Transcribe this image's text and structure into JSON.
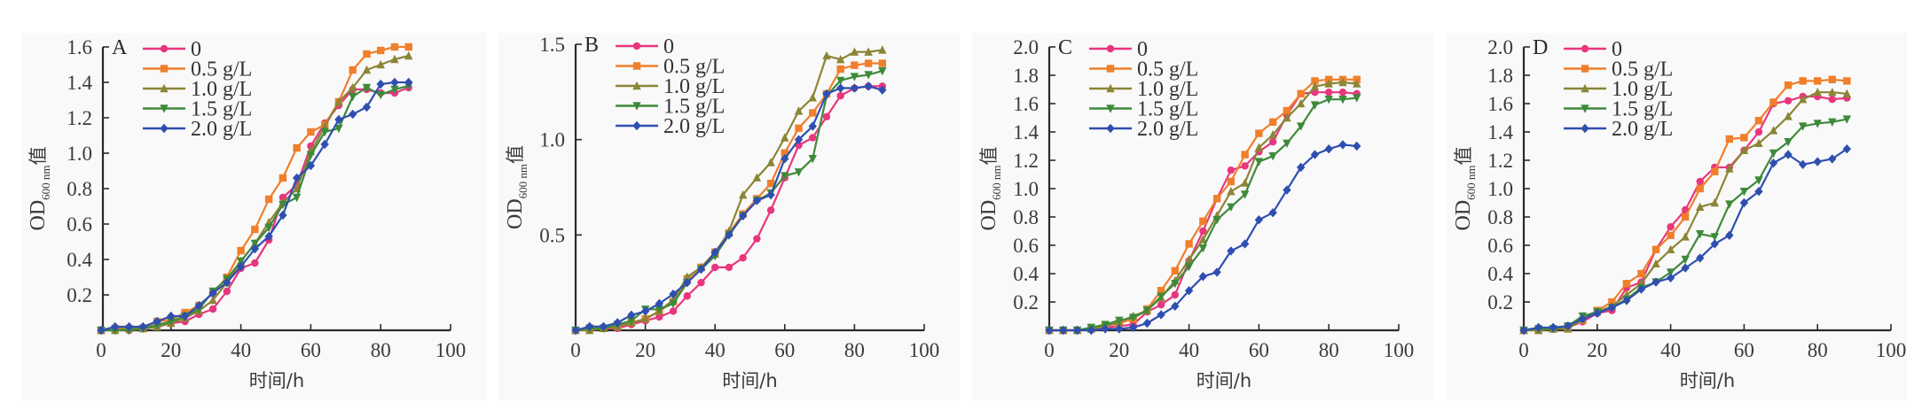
{
  "figure": {
    "series_labels": [
      "0",
      "0.5 g/L",
      "1.0 g/L",
      "1.5 g/L",
      "2.0 g/L"
    ],
    "series_colors": [
      "#e8367f",
      "#f07f2b",
      "#8b8536",
      "#3d8a3a",
      "#2f4fb0"
    ],
    "series_markers": [
      "circle",
      "square",
      "triangle-up",
      "triangle-down",
      "diamond"
    ]
  },
  "chart_data": [
    {
      "type": "line",
      "panel": "A",
      "title": "",
      "xlabel": "时间/h",
      "ylabel_main": "OD",
      "ylabel_sub": "600 nm",
      "ylabel_suffix": "值",
      "xlim": [
        0,
        100
      ],
      "ylim": [
        0,
        1.6
      ],
      "xticks": [
        0,
        20,
        40,
        60,
        80,
        100
      ],
      "yticks": [
        0.2,
        0.4,
        0.6,
        0.8,
        1.0,
        1.2,
        1.4,
        1.6
      ],
      "ytick_labels": [
        "0.2",
        "0.4",
        "0.6",
        "0.8",
        "1.0",
        "1.2",
        "1.4",
        "1.6"
      ],
      "xtick_labels": [
        "0",
        "20",
        "40",
        "60",
        "80",
        "100"
      ],
      "legend": "top-left",
      "grid": false,
      "x": [
        0,
        4,
        8,
        12,
        16,
        20,
        24,
        28,
        32,
        36,
        40,
        44,
        48,
        52,
        56,
        60,
        64,
        68,
        72,
        76,
        80,
        84,
        88
      ],
      "series": [
        {
          "name": "0",
          "values": [
            0,
            0.01,
            0,
            0.01,
            0.02,
            0.04,
            0.05,
            0.09,
            0.12,
            0.22,
            0.35,
            0.38,
            0.51,
            0.75,
            0.82,
            1.04,
            1.17,
            1.27,
            1.36,
            1.36,
            1.34,
            1.34,
            1.37
          ]
        },
        {
          "name": "0.5 g/L",
          "values": [
            0,
            0.01,
            0.01,
            0.01,
            0.05,
            0.06,
            0.1,
            0.14,
            0.21,
            0.3,
            0.45,
            0.57,
            0.74,
            0.86,
            1.03,
            1.12,
            1.16,
            1.29,
            1.47,
            1.56,
            1.58,
            1.6,
            1.6
          ]
        },
        {
          "name": "1.0 g/L",
          "values": [
            0,
            0,
            0.01,
            0.01,
            0.02,
            0.04,
            0.07,
            0.11,
            0.17,
            0.27,
            0.39,
            0.49,
            0.61,
            0.72,
            0.8,
            1.01,
            1.15,
            1.29,
            1.37,
            1.47,
            1.5,
            1.53,
            1.55
          ]
        },
        {
          "name": "1.5 g/L",
          "values": [
            0,
            0,
            0,
            0.01,
            0.03,
            0.05,
            0.08,
            0.12,
            0.22,
            0.29,
            0.39,
            0.49,
            0.58,
            0.71,
            0.75,
            0.99,
            1.12,
            1.14,
            1.32,
            1.37,
            1.33,
            1.36,
            1.38
          ]
        },
        {
          "name": "2.0 g/L",
          "values": [
            0,
            0.02,
            0.02,
            0.02,
            0.05,
            0.08,
            0.08,
            0.14,
            0.21,
            0.27,
            0.36,
            0.46,
            0.53,
            0.65,
            0.86,
            0.93,
            1.05,
            1.19,
            1.22,
            1.26,
            1.39,
            1.4,
            1.4
          ]
        }
      ]
    },
    {
      "type": "line",
      "panel": "B",
      "title": "",
      "xlabel": "时间/h",
      "ylabel_main": "OD",
      "ylabel_sub": "600 nm",
      "ylabel_suffix": "值",
      "xlim": [
        0,
        100
      ],
      "ylim": [
        0,
        1.5
      ],
      "xticks": [
        0,
        20,
        40,
        60,
        80,
        100
      ],
      "yticks": [
        0.5,
        1.0,
        1.5
      ],
      "ytick_labels": [
        "0.5",
        "1.0",
        "1.5"
      ],
      "xtick_labels": [
        "0",
        "20",
        "40",
        "60",
        "80",
        "100"
      ],
      "legend": "top-left",
      "grid": false,
      "x": [
        0,
        4,
        8,
        12,
        16,
        20,
        24,
        28,
        32,
        36,
        40,
        44,
        48,
        52,
        56,
        60,
        64,
        68,
        72,
        76,
        80,
        84,
        88
      ],
      "series": [
        {
          "name": "0",
          "values": [
            0,
            0.01,
            0.01,
            0.01,
            0.03,
            0.05,
            0.07,
            0.1,
            0.18,
            0.25,
            0.33,
            0.33,
            0.38,
            0.48,
            0.63,
            0.8,
            0.97,
            1.01,
            1.12,
            1.23,
            1.27,
            1.28,
            1.28
          ]
        },
        {
          "name": "0.5 g/L",
          "values": [
            0,
            0.01,
            0.01,
            0.02,
            0.04,
            0.06,
            0.1,
            0.15,
            0.27,
            0.33,
            0.41,
            0.51,
            0.61,
            0.69,
            0.77,
            0.93,
            1.06,
            1.14,
            1.24,
            1.37,
            1.39,
            1.4,
            1.4
          ]
        },
        {
          "name": "1.0 g/L",
          "values": [
            0,
            0,
            0.01,
            0.02,
            0.04,
            0.06,
            0.1,
            0.16,
            0.28,
            0.33,
            0.4,
            0.52,
            0.71,
            0.8,
            0.88,
            1.01,
            1.15,
            1.22,
            1.44,
            1.42,
            1.46,
            1.46,
            1.47
          ]
        },
        {
          "name": "1.5 g/L",
          "values": [
            0,
            0.01,
            0.01,
            0.03,
            0.05,
            0.11,
            0.11,
            0.14,
            0.25,
            0.32,
            0.39,
            0.5,
            0.6,
            0.68,
            0.72,
            0.81,
            0.83,
            0.9,
            1.23,
            1.31,
            1.33,
            1.34,
            1.36
          ]
        },
        {
          "name": "2.0 g/L",
          "values": [
            0,
            0.02,
            0.02,
            0.04,
            0.08,
            0.1,
            0.14,
            0.19,
            0.25,
            0.32,
            0.41,
            0.5,
            0.6,
            0.68,
            0.71,
            0.9,
            1.0,
            1.07,
            1.24,
            1.27,
            1.27,
            1.28,
            1.26
          ]
        }
      ]
    },
    {
      "type": "line",
      "panel": "C",
      "title": "",
      "xlabel": "时间/h",
      "ylabel_main": "OD",
      "ylabel_sub": "600 nm",
      "ylabel_suffix": "值",
      "xlim": [
        0,
        100
      ],
      "ylim": [
        0,
        2.0
      ],
      "xticks": [
        0,
        20,
        40,
        60,
        80,
        100
      ],
      "yticks": [
        0.2,
        0.4,
        0.6,
        0.8,
        1.0,
        1.2,
        1.4,
        1.6,
        1.8,
        2.0
      ],
      "ytick_labels": [
        "0.2",
        "0.4",
        "0.6",
        "0.8",
        "1.0",
        "1.2",
        "1.4",
        "1.6",
        "1.8",
        "2.0"
      ],
      "xtick_labels": [
        "0",
        "20",
        "40",
        "60",
        "80",
        "100"
      ],
      "legend": "top-left",
      "grid": false,
      "x": [
        0,
        4,
        8,
        12,
        16,
        20,
        24,
        28,
        32,
        36,
        40,
        44,
        48,
        52,
        56,
        60,
        64,
        68,
        72,
        76,
        80,
        84,
        88
      ],
      "series": [
        {
          "name": "0",
          "values": [
            0,
            0,
            0,
            0.01,
            0.02,
            0.03,
            0.04,
            0.13,
            0.18,
            0.25,
            0.49,
            0.7,
            0.93,
            1.13,
            1.16,
            1.26,
            1.33,
            1.52,
            1.67,
            1.68,
            1.68,
            1.68,
            1.67
          ]
        },
        {
          "name": "0.5 g/L",
          "values": [
            0,
            0,
            0,
            0.01,
            0.03,
            0.05,
            0.08,
            0.15,
            0.28,
            0.42,
            0.61,
            0.77,
            0.93,
            1.05,
            1.24,
            1.39,
            1.47,
            1.55,
            1.67,
            1.76,
            1.77,
            1.77,
            1.77
          ]
        },
        {
          "name": "1.0 g/L",
          "values": [
            0,
            0,
            0,
            0.01,
            0.03,
            0.06,
            0.1,
            0.14,
            0.23,
            0.35,
            0.5,
            0.64,
            0.81,
            0.98,
            1.04,
            1.29,
            1.38,
            1.5,
            1.6,
            1.72,
            1.74,
            1.75,
            1.74
          ]
        },
        {
          "name": "1.5 g/L",
          "values": [
            0,
            0,
            0,
            0.02,
            0.04,
            0.07,
            0.09,
            0.14,
            0.24,
            0.33,
            0.45,
            0.58,
            0.78,
            0.87,
            0.96,
            1.19,
            1.23,
            1.32,
            1.44,
            1.59,
            1.63,
            1.63,
            1.64
          ]
        },
        {
          "name": "2.0 g/L",
          "values": [
            0,
            0,
            0,
            0,
            0.01,
            0.01,
            0.02,
            0.05,
            0.11,
            0.17,
            0.28,
            0.38,
            0.41,
            0.56,
            0.61,
            0.78,
            0.83,
            0.99,
            1.15,
            1.24,
            1.28,
            1.31,
            1.3
          ]
        }
      ]
    },
    {
      "type": "line",
      "panel": "D",
      "title": "",
      "xlabel": "时间/h",
      "ylabel_main": "OD",
      "ylabel_sub": "600 nm",
      "ylabel_suffix": "值",
      "xlim": [
        0,
        100
      ],
      "ylim": [
        0,
        2.0
      ],
      "xticks": [
        0,
        20,
        40,
        60,
        80,
        100
      ],
      "yticks": [
        0.2,
        0.4,
        0.6,
        0.8,
        1.0,
        1.2,
        1.4,
        1.6,
        1.8,
        2.0
      ],
      "ytick_labels": [
        "0.2",
        "0.4",
        "0.6",
        "0.8",
        "1.0",
        "1.2",
        "1.4",
        "1.6",
        "1.8",
        "2.0"
      ],
      "xtick_labels": [
        "0",
        "20",
        "40",
        "60",
        "80",
        "100"
      ],
      "legend": "top-left",
      "grid": false,
      "x": [
        0,
        4,
        8,
        12,
        16,
        20,
        24,
        28,
        32,
        36,
        40,
        44,
        48,
        52,
        56,
        60,
        64,
        68,
        72,
        76,
        80,
        84,
        88
      ],
      "series": [
        {
          "name": "0",
          "values": [
            0,
            0.01,
            0.01,
            0.02,
            0.06,
            0.12,
            0.14,
            0.3,
            0.34,
            0.57,
            0.73,
            0.85,
            1.05,
            1.15,
            1.15,
            1.27,
            1.4,
            1.6,
            1.62,
            1.65,
            1.65,
            1.63,
            1.64
          ]
        },
        {
          "name": "0.5 g/L",
          "values": [
            0,
            0,
            0.01,
            0.02,
            0.07,
            0.14,
            0.2,
            0.33,
            0.4,
            0.57,
            0.67,
            0.8,
            1.0,
            1.12,
            1.35,
            1.36,
            1.48,
            1.61,
            1.73,
            1.76,
            1.76,
            1.77,
            1.76
          ]
        },
        {
          "name": "1.0 g/L",
          "values": [
            0,
            0,
            0.01,
            0.01,
            0.08,
            0.13,
            0.17,
            0.25,
            0.33,
            0.47,
            0.57,
            0.66,
            0.87,
            0.9,
            1.14,
            1.27,
            1.32,
            1.41,
            1.51,
            1.63,
            1.68,
            1.68,
            1.67
          ]
        },
        {
          "name": "1.5 g/L",
          "values": [
            0,
            0.01,
            0.01,
            0.03,
            0.1,
            0.13,
            0.16,
            0.22,
            0.3,
            0.34,
            0.41,
            0.5,
            0.68,
            0.66,
            0.89,
            0.98,
            1.06,
            1.25,
            1.33,
            1.44,
            1.46,
            1.47,
            1.49
          ]
        },
        {
          "name": "2.0 g/L",
          "values": [
            0,
            0.02,
            0.02,
            0.03,
            0.08,
            0.12,
            0.16,
            0.21,
            0.29,
            0.34,
            0.37,
            0.44,
            0.51,
            0.61,
            0.67,
            0.9,
            0.98,
            1.18,
            1.24,
            1.17,
            1.19,
            1.21,
            1.28
          ]
        }
      ]
    }
  ]
}
